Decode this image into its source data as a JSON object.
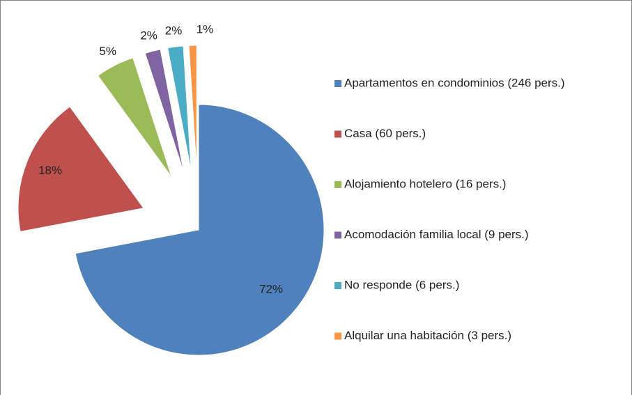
{
  "chart_data": {
    "type": "pie",
    "categories": [
      "Apartamentos en condominios (246 pers.)",
      "Casa (60 pers.)",
      "Alojamiento hotelero (16 pers.)",
      "Acomodación familia local (9 pers.)",
      "No responde (6 pers.)",
      "Alquilar una habitación (3 pers.)"
    ],
    "values": [
      72,
      18,
      5,
      2,
      2,
      1
    ],
    "value_labels": [
      "72%",
      "18%",
      "5%",
      "2%",
      "2%",
      "1%"
    ],
    "colors": [
      "#4f81bd",
      "#c0504d",
      "#9bbb59",
      "#8064a2",
      "#4bacc6",
      "#f79646"
    ],
    "legend": "right"
  }
}
